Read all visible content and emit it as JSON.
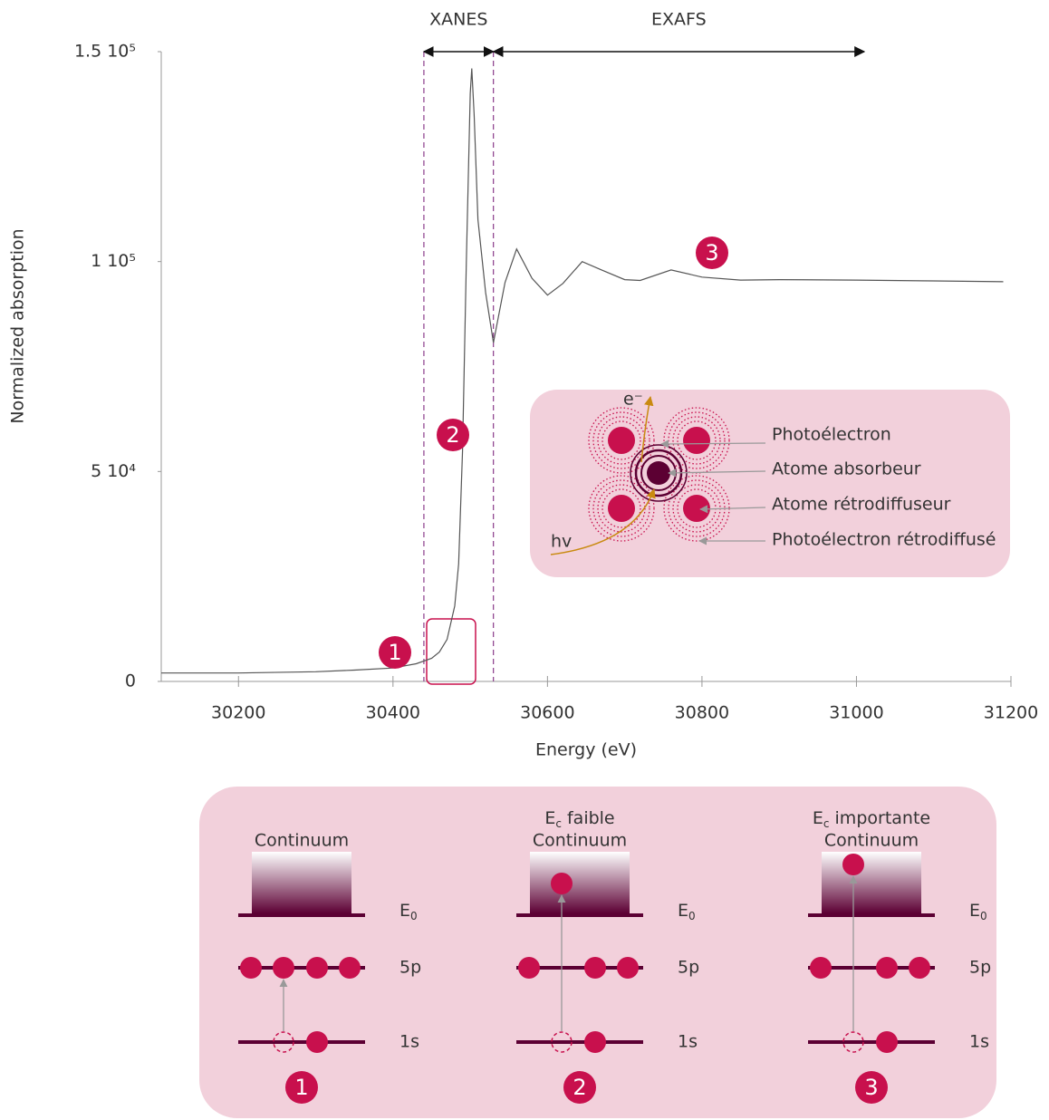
{
  "chart_data": {
    "type": "line",
    "x_label": "Energy (eV)",
    "y_label": "Normalized absorption",
    "color": "#555555",
    "x": [
      30100,
      30200,
      30300,
      30350,
      30400,
      30430,
      30450,
      30460,
      30470,
      30480,
      30485,
      30490,
      30495,
      30500,
      30502,
      30505,
      30510,
      30520,
      30530,
      30545,
      30560,
      30580,
      30600,
      30620,
      30645,
      30670,
      30700,
      30720,
      30760,
      30800,
      30850,
      30900,
      31000,
      31100,
      31190
    ],
    "values": [
      2000,
      2000,
      2300,
      2700,
      3200,
      4200,
      5500,
      7000,
      10000,
      18000,
      28000,
      55000,
      100000,
      140000,
      146000,
      135000,
      110000,
      92600,
      80700,
      95000,
      103000,
      96000,
      92000,
      94800,
      100000,
      98000,
      95700,
      95500,
      98000,
      96300,
      95600,
      95700,
      95600,
      95400,
      95200
    ],
    "xlim": [
      30100,
      31200
    ],
    "xticks": [
      30200,
      30400,
      30600,
      30800,
      31000,
      31200
    ],
    "ylim": [
      0,
      150000
    ],
    "yticks": [
      0,
      {
        "value": 50000,
        "label": "5 10⁴"
      },
      {
        "value": 100000,
        "label": "1 10⁵"
      },
      {
        "value": 150000,
        "label": "1.5 10⁵"
      }
    ],
    "regions": [
      {
        "label": "XANES",
        "range": [
          30440,
          30530
        ]
      },
      {
        "label": "EXAFS",
        "range": [
          30530,
          31010
        ]
      }
    ],
    "markers": [
      "1",
      "2",
      "3"
    ]
  },
  "inset": {
    "electron": "e⁻",
    "photon": "hv",
    "labels": [
      "Photoélectron",
      "Atome absorbeur",
      "Atome rétrodiffuseur",
      "Photoélectron rétrodiffusé"
    ]
  },
  "panel": {
    "columns": [
      {
        "number": "1",
        "continuum": "Continuum",
        "e0": {
          "base": "E",
          "sub": "0"
        },
        "p5": "5p",
        "s1": "1s"
      },
      {
        "number": "2",
        "energy": {
          "base": "E",
          "sub": "c",
          "text": "faible"
        },
        "continuum": "Continuum",
        "e0": {
          "base": "E",
          "sub": "0"
        },
        "p5": "5p",
        "s1": "1s"
      },
      {
        "number": "3",
        "energy": {
          "base": "E",
          "sub": "c",
          "text": "importante"
        },
        "continuum": "Continuum",
        "e0": {
          "base": "E",
          "sub": "0"
        },
        "p5": "5p",
        "s1": "1s"
      }
    ]
  }
}
